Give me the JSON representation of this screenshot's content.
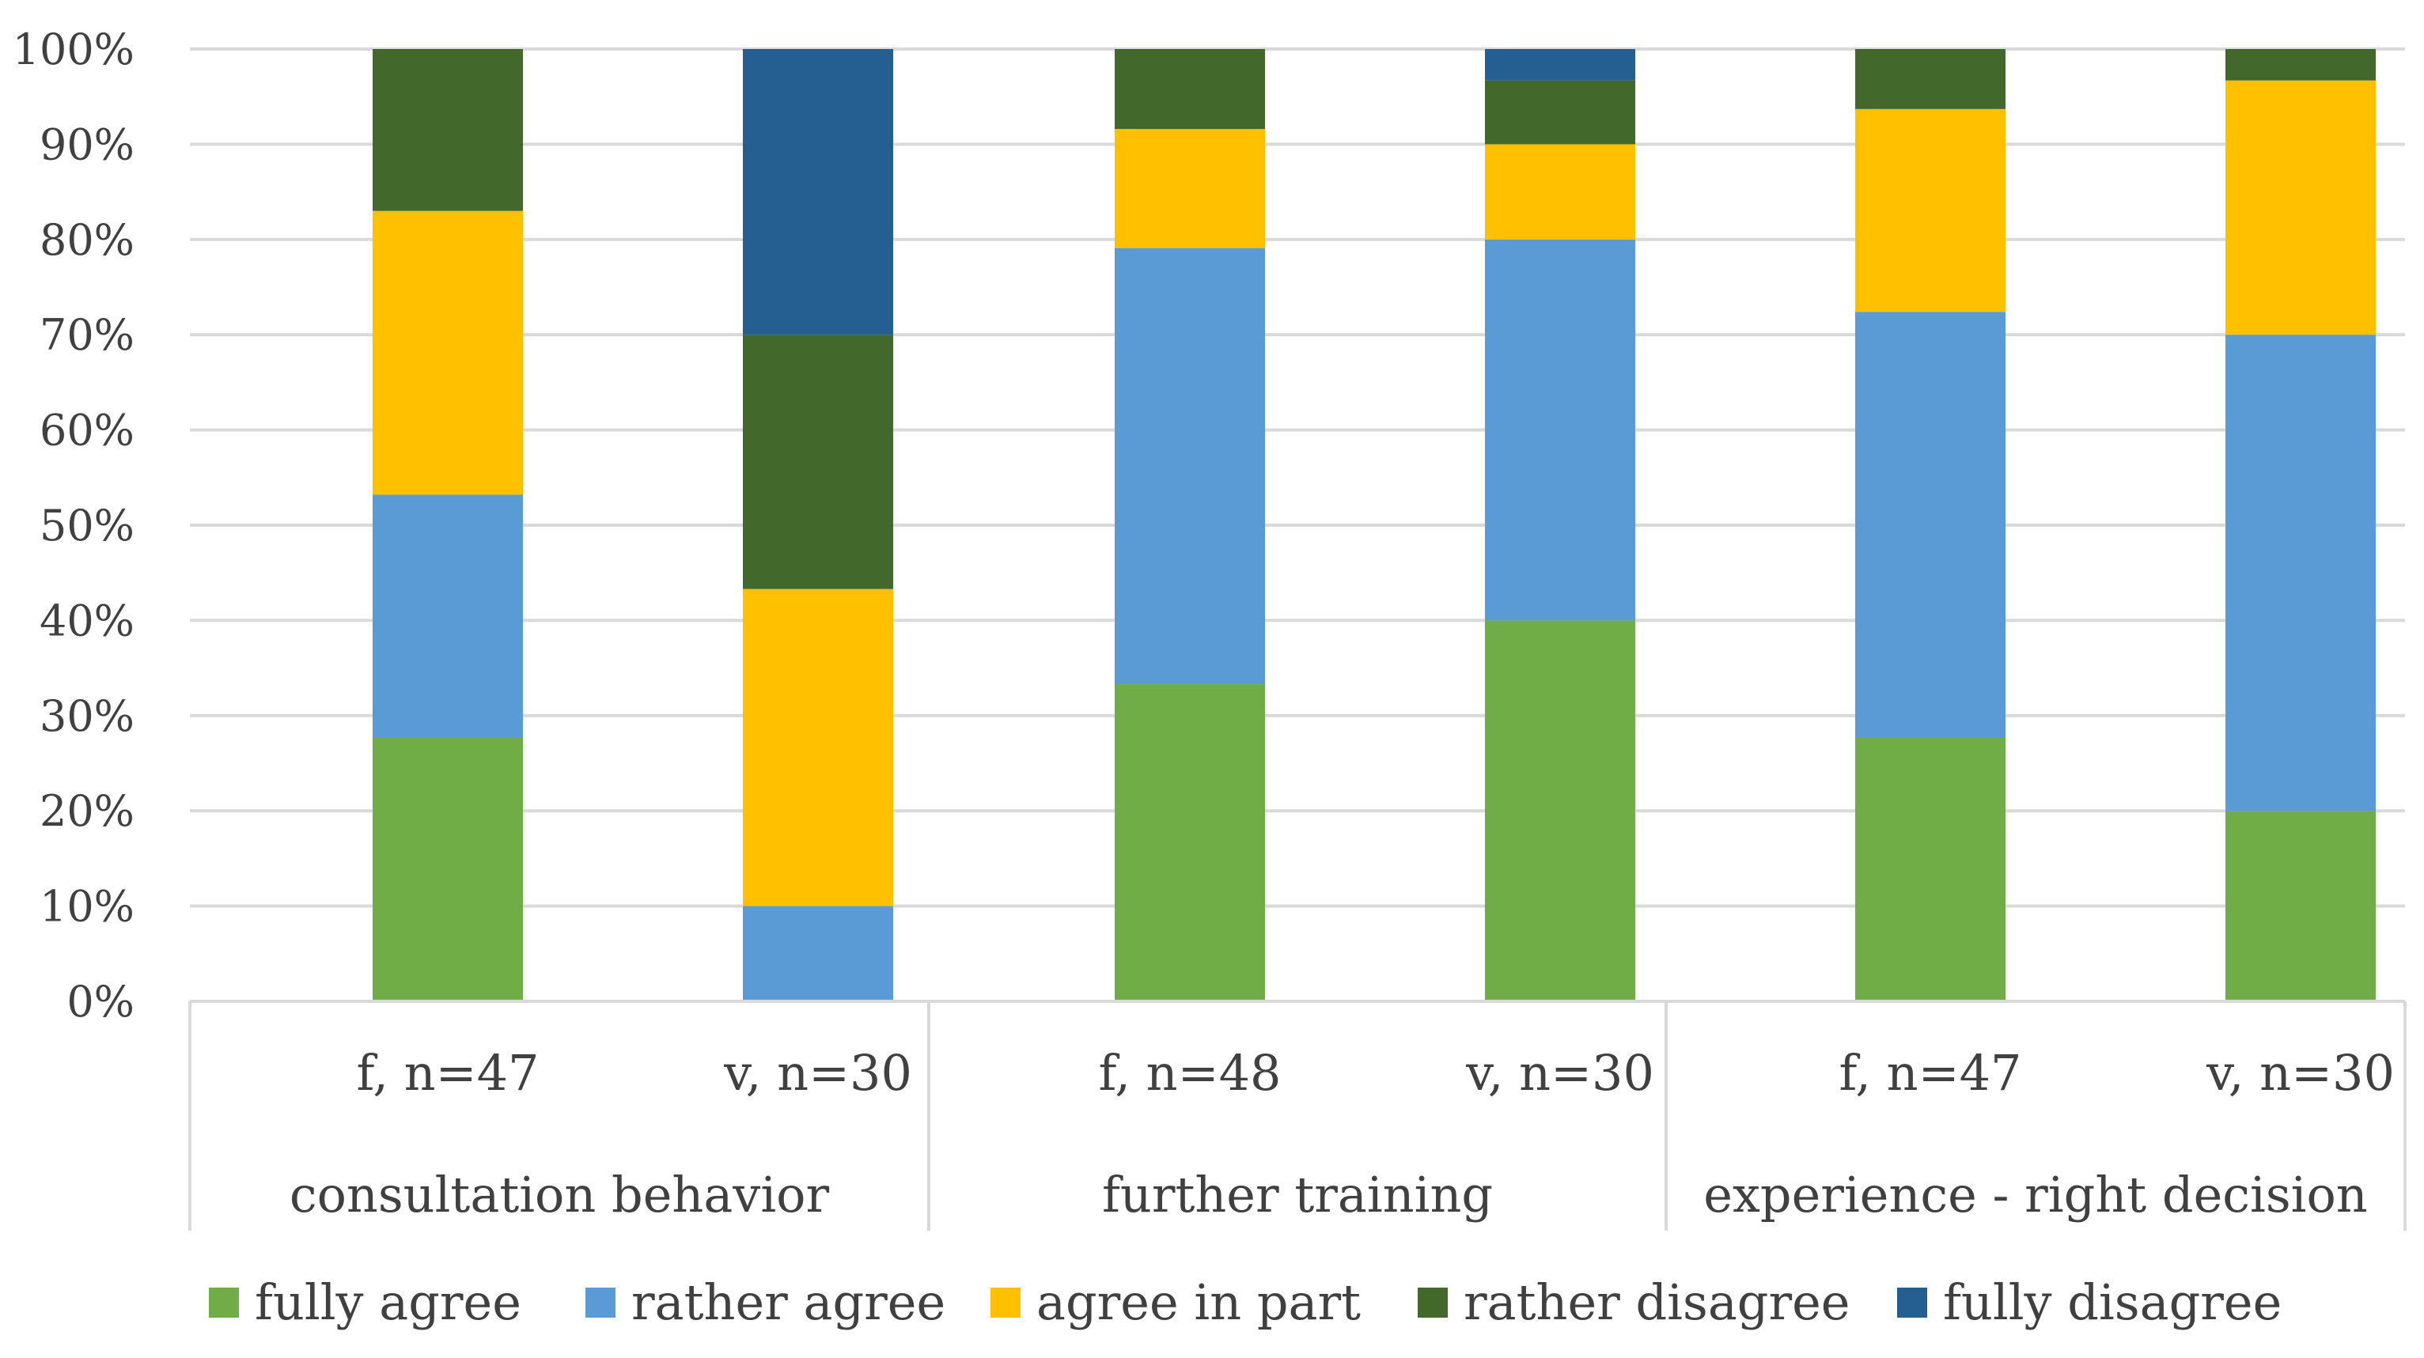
{
  "chart_data": {
    "type": "bar",
    "stacked": true,
    "percent": true,
    "ylim": [
      0,
      100
    ],
    "y_ticks": [
      "0%",
      "10%",
      "20%",
      "30%",
      "40%",
      "50%",
      "60%",
      "70%",
      "80%",
      "90%",
      "100%"
    ],
    "grid": true,
    "legend_position": "bottom",
    "groups": [
      {
        "label": "consultation behavior",
        "categories": [
          "f, n=47",
          "v, n=30"
        ]
      },
      {
        "label": "further training",
        "categories": [
          "f, n=48",
          "v, n=30"
        ]
      },
      {
        "label": "experience - right decision",
        "categories": [
          "f, n=47",
          "v, n=30"
        ]
      }
    ],
    "categories": [
      "f, n=47",
      "v, n=30",
      "f, n=48",
      "v, n=30",
      "f, n=47",
      "v, n=30"
    ],
    "series": [
      {
        "name": "fully agree",
        "color": "#70AD47",
        "values": [
          27.7,
          0,
          33.3,
          40.0,
          27.7,
          20.0
        ]
      },
      {
        "name": "rather agree",
        "color": "#5B9BD5",
        "values": [
          25.5,
          10.0,
          45.8,
          40.0,
          44.7,
          50.0
        ]
      },
      {
        "name": "agree in part",
        "color": "#FFC000",
        "values": [
          29.8,
          33.3,
          12.5,
          10.0,
          21.3,
          26.7
        ]
      },
      {
        "name": "rather disagree",
        "color": "#43682B",
        "values": [
          17.0,
          26.7,
          8.4,
          6.7,
          6.3,
          3.3
        ]
      },
      {
        "name": "fully disagree",
        "color": "#255E91",
        "values": [
          0,
          30.0,
          0,
          3.3,
          0,
          0
        ]
      }
    ]
  }
}
